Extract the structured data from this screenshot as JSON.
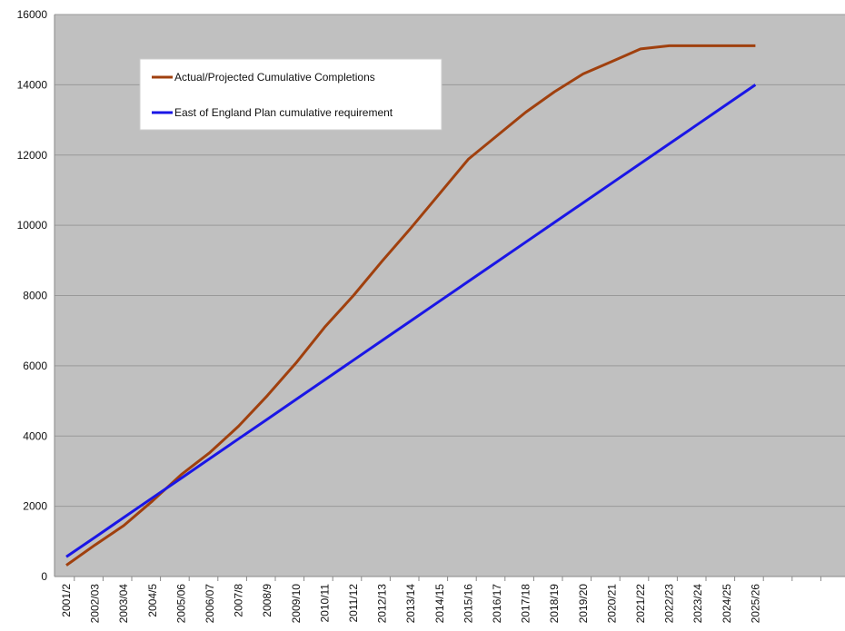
{
  "chart_data": {
    "type": "line",
    "categories": [
      "2001/2",
      "2002/03",
      "2003/04",
      "2004/5",
      "2005/06",
      "2006/07",
      "2007/8",
      "2008/9",
      "2009/10",
      "2010/11",
      "2011/12",
      "2012/13",
      "2013/14",
      "2014/15",
      "2015/16",
      "2016/17",
      "2017/18",
      "2018/19",
      "2019/20",
      "2020/21",
      "2021/22",
      "2022/23",
      "2023/24",
      "2024/25",
      "2025/26"
    ],
    "ylim": [
      0,
      16000
    ],
    "yticks": [
      0,
      2000,
      4000,
      6000,
      8000,
      10000,
      12000,
      14000,
      16000
    ],
    "grid": true,
    "legend_position": "top-left",
    "series": [
      {
        "name": "Actual/Projected Cumulative Completions",
        "color": "#a0400e",
        "values": [
          320,
          900,
          1450,
          2150,
          2900,
          3530,
          4280,
          5150,
          6080,
          7100,
          8000,
          8980,
          9920,
          10900,
          11880,
          12550,
          13220,
          13800,
          14310,
          14660,
          15020,
          15110,
          15110,
          15110,
          15110
        ]
      },
      {
        "name": "East of England Plan cumulative requirement",
        "color": "#1a16e6",
        "values": [
          560,
          1120,
          1680,
          2240,
          2800,
          3360,
          3920,
          4480,
          5040,
          5600,
          6160,
          6720,
          7280,
          7840,
          8400,
          8960,
          9520,
          10080,
          10640,
          11200,
          11760,
          12320,
          12880,
          13440,
          14000
        ]
      }
    ],
    "background_color": "#c0c0c0",
    "gridline_color": "#999999"
  }
}
